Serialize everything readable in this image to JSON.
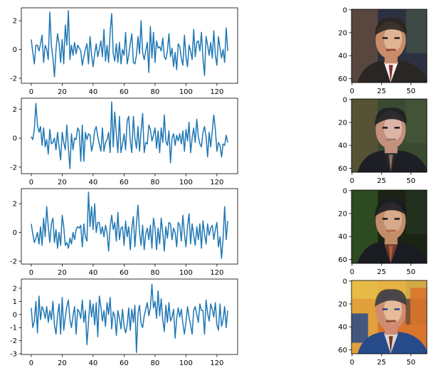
{
  "figure": {
    "line_color": "#1f77b4",
    "axis_color": "#000000",
    "background": "#ffffff"
  },
  "chart_data": [
    {
      "type": "line",
      "row": 1,
      "title": "",
      "xlabel": "",
      "ylabel": "",
      "grid": false,
      "xlim": [
        -6.4,
        133.4
      ],
      "ylim": [
        -2.35,
        2.9
      ],
      "xticks": [
        0,
        20,
        40,
        60,
        80,
        100,
        120
      ],
      "yticks": [
        -2,
        0,
        2
      ],
      "x_start": 0,
      "x_step": 1,
      "series": [
        {
          "values": [
            0.7,
            -0.2,
            -1.0,
            0.3,
            0.3,
            -0.1,
            0.4,
            1.0,
            -0.9,
            0.3,
            0.0,
            -0.7,
            2.6,
            0.3,
            -0.6,
            -1.9,
            0.0,
            1.1,
            0.4,
            -0.9,
            0.7,
            -1.0,
            1.7,
            0.3,
            2.7,
            -0.7,
            0.3,
            -0.4,
            0.5,
            -0.3,
            0.3,
            0.1,
            -0.1,
            -1.1,
            -0.5,
            0.0,
            0.4,
            -1.0,
            0.9,
            -0.4,
            -1.2,
            -0.3,
            0.4,
            -0.5,
            0.0,
            0.6,
            -0.5,
            1.4,
            -0.8,
            0.3,
            -0.9,
            1.2,
            2.5,
            -0.3,
            -0.8,
            0.4,
            -0.9,
            0.5,
            -1.0,
            0.0,
            -0.4,
            1.2,
            -1.0,
            -0.4,
            0.4,
            1.1,
            -0.9,
            -1.0,
            -0.4,
            0.9,
            -0.3,
            2.0,
            -0.2,
            -0.7,
            -0.1,
            0.5,
            -1.6,
            1.6,
            -0.6,
            1.2,
            -0.9,
            0.6,
            0.1,
            0.2,
            -0.1,
            0.8,
            -0.5,
            -0.7,
            -0.1,
            1.1,
            -0.5,
            0.1,
            -1.2,
            -0.2,
            -1.4,
            0.4,
            0.2,
            -0.6,
            -1.1,
            1.0,
            -0.5,
            -1.2,
            0.3,
            -0.1,
            -0.7,
            1.4,
            -0.5,
            0.5,
            0.6,
            -0.1,
            1.2,
            -0.6,
            -1.8,
            0.9,
            0.3,
            -0.4,
            0.5,
            -0.6,
            1.3,
            -0.4,
            -1.1,
            0.9,
            0.1,
            -0.6,
            0.0,
            -0.9,
            1.5,
            -0.1
          ]
        }
      ]
    },
    {
      "type": "line",
      "row": 2,
      "title": "",
      "xlabel": "",
      "ylabel": "",
      "grid": false,
      "xlim": [
        -6.4,
        133.4
      ],
      "ylim": [
        -2.45,
        2.75
      ],
      "xticks": [
        0,
        20,
        40,
        60,
        80,
        100,
        120
      ],
      "yticks": [
        -2,
        0,
        2
      ],
      "x_start": 0,
      "x_step": 1,
      "series": [
        {
          "values": [
            0.1,
            -0.1,
            0.6,
            2.4,
            0.9,
            0.4,
            0.8,
            -0.5,
            0.7,
            -0.6,
            -0.1,
            -1.1,
            0.6,
            -0.4,
            -0.3,
            0.0,
            -0.8,
            0.4,
            -0.6,
            -1.5,
            0.4,
            -0.3,
            -0.8,
            0.9,
            -0.7,
            -2.1,
            0.3,
            -0.8,
            0.0,
            -0.1,
            0.7,
            0.5,
            -1.6,
            0.9,
            -1.6,
            0.4,
            -0.1,
            0.3,
            0.2,
            -0.9,
            -0.4,
            0.5,
            0.8,
            0.1,
            -0.4,
            -0.9,
            0.7,
            -0.9,
            -0.3,
            -0.1,
            0.4,
            -1.0,
            2.5,
            -0.6,
            1.8,
            0.3,
            -1.0,
            1.5,
            -1.0,
            -0.4,
            0.3,
            -0.8,
            1.2,
            1.5,
            -0.2,
            -1.0,
            1.5,
            0.0,
            -0.7,
            0.8,
            -0.9,
            0.5,
            1.7,
            -1.0,
            -0.3,
            -0.4,
            0.9,
            0.6,
            -0.2,
            0.2,
            0.7,
            -0.7,
            0.5,
            -1.0,
            0.7,
            -0.3,
            1.6,
            -0.2,
            -0.5,
            0.5,
            -1.7,
            0.0,
            0.3,
            -0.5,
            0.2,
            -0.2,
            0.3,
            -0.4,
            0.5,
            -0.9,
            0.6,
            -0.2,
            1.1,
            -1.0,
            0.0,
            0.7,
            -0.3,
            1.3,
            0.1,
            -0.4,
            -0.6,
            0.4,
            0.8,
            0.1,
            -1.3,
            0.4,
            -0.6,
            0.5,
            1.6,
            0.6,
            -0.9,
            -0.3,
            -0.5,
            -1.3,
            -0.4,
            -0.5,
            0.2,
            -0.3
          ]
        }
      ]
    },
    {
      "type": "line",
      "row": 3,
      "title": "",
      "xlabel": "",
      "ylabel": "",
      "grid": false,
      "xlim": [
        -6.4,
        133.4
      ],
      "ylim": [
        -2.2,
        3.05
      ],
      "xticks": [
        0,
        20,
        40,
        60,
        80,
        100,
        120
      ],
      "yticks": [
        -2,
        0,
        2
      ],
      "x_start": 0,
      "x_step": 1,
      "series": [
        {
          "values": [
            0.6,
            -0.1,
            -0.7,
            -0.4,
            0.0,
            -0.8,
            0.4,
            -0.9,
            1.0,
            -0.3,
            1.8,
            0.4,
            -0.7,
            0.6,
            1.0,
            -0.7,
            0.2,
            -1.1,
            0.0,
            -0.9,
            1.2,
            0.4,
            -0.9,
            -0.7,
            -1.1,
            -0.4,
            -0.8,
            0.0,
            -0.5,
            0.2,
            0.4,
            0.3,
            0.5,
            -1.0,
            0.6,
            -0.3,
            -0.6,
            2.8,
            0.4,
            1.8,
            0.2,
            2.0,
            0.0,
            0.7,
            0.7,
            -0.1,
            0.4,
            -0.3,
            0.5,
            0.0,
            -1.3,
            0.4,
            1.2,
            0.2,
            0.7,
            -0.6,
            1.4,
            -0.5,
            0.3,
            0.4,
            -0.9,
            0.8,
            -0.3,
            0.4,
            -1.2,
            0.3,
            1.1,
            -1.0,
            0.6,
            1.9,
            0.0,
            -0.9,
            0.5,
            -1.2,
            -0.1,
            0.3,
            -0.5,
            0.5,
            -1.1,
            1.0,
            0.3,
            -1.2,
            0.3,
            -0.8,
            1.0,
            0.0,
            -1.3,
            0.4,
            -0.4,
            0.7,
            0.6,
            -0.5,
            0.3,
            0.0,
            -1.0,
            0.7,
            0.5,
            -0.6,
            1.2,
            -0.1,
            -1.0,
            0.4,
            1.3,
            -0.8,
            0.6,
            -0.2,
            -0.9,
            0.4,
            -0.5,
            0.6,
            -1.1,
            0.8,
            -0.1,
            -0.8,
            0.6,
            -0.2,
            0.3,
            0.5,
            -0.5,
            0.2,
            0.7,
            -1.0,
            -0.3,
            -1.8,
            -0.4,
            1.8,
            -0.5,
            0.8
          ]
        }
      ]
    },
    {
      "type": "line",
      "row": 4,
      "title": "",
      "xlabel": "",
      "ylabel": "",
      "grid": false,
      "xlim": [
        -6.4,
        133.4
      ],
      "ylim": [
        -3.05,
        2.7
      ],
      "xticks": [
        0,
        20,
        40,
        60,
        80,
        100,
        120
      ],
      "yticks": [
        -3,
        -2,
        -1,
        0,
        1,
        2
      ],
      "x_start": 0,
      "x_step": 1,
      "series": [
        {
          "values": [
            0.5,
            -1.0,
            -0.5,
            1.0,
            -1.4,
            1.4,
            -0.4,
            0.6,
            0.3,
            -0.3,
            0.6,
            -0.6,
            0.3,
            -0.4,
            1.0,
            -0.8,
            -1.5,
            -0.1,
            0.8,
            -1.5,
            1.3,
            -1.2,
            -0.2,
            0.6,
            1.1,
            -0.4,
            -1.0,
            -0.1,
            0.6,
            -1.5,
            0.4,
            0.2,
            -0.3,
            1.1,
            -0.6,
            0.3,
            -2.3,
            -0.6,
            1.1,
            -0.2,
            0.8,
            -0.8,
            0.9,
            -1.7,
            1.4,
            0.6,
            -0.5,
            0.3,
            -0.9,
            0.9,
            0.0,
            1.3,
            -1.1,
            0.2,
            -0.1,
            -1.6,
            0.3,
            -0.3,
            -1.1,
            0.4,
            -0.9,
            -1.4,
            -0.8,
            0.5,
            -1.2,
            0.4,
            -0.6,
            0.7,
            -2.9,
            0.1,
            0.7,
            -0.7,
            -1.0,
            -0.1,
            0.4,
            0.9,
            -0.1,
            0.5,
            2.3,
            0.5,
            1.0,
            -0.3,
            1.8,
            -0.1,
            1.2,
            -0.4,
            -1.3,
            0.7,
            -0.6,
            0.9,
            -0.5,
            -0.2,
            0.4,
            -1.8,
            -0.3,
            0.5,
            -0.2,
            0.4,
            -0.7,
            -1.5,
            -0.6,
            0.6,
            -0.2,
            -0.8,
            -1.5,
            0.3,
            0.6,
            0.0,
            -0.6,
            0.8,
            0.3,
            0.3,
            -1.5,
            1.1,
            0.1,
            -0.5,
            0.8,
            0.4,
            -0.2,
            0.9,
            -0.8,
            -1.2,
            0.8,
            -0.9,
            -0.4,
            0.6,
            -1.0,
            0.3
          ]
        }
      ]
    }
  ],
  "images": [
    {
      "name": "generated-face-1",
      "xticks": [
        0,
        25,
        50
      ],
      "yticks": [
        0,
        20,
        40,
        60
      ],
      "palette": [
        "#2b3140",
        "#7d5a3e",
        "#c98c6a",
        "#e8c4a6",
        "#2a2623",
        "#f2f0ee",
        "#8a2b25",
        "#4a5a4a"
      ]
    },
    {
      "name": "generated-face-2",
      "xticks": [
        0,
        25,
        50
      ],
      "yticks": [
        0,
        20,
        40,
        60
      ],
      "palette": [
        "#3a4a30",
        "#6b5a3b",
        "#c3907e",
        "#e6c3b6",
        "#1e1f24",
        "#26282e",
        "#8d6e5a",
        "#495c3a"
      ]
    },
    {
      "name": "generated-face-3",
      "xticks": [
        0,
        25,
        50
      ],
      "yticks": [
        0,
        20,
        40,
        60
      ],
      "palette": [
        "#1b2414",
        "#3c6a2a",
        "#c48d6a",
        "#e0b79a",
        "#1a1c22",
        "#6b3c2c",
        "#b25c3a",
        "#283824"
      ]
    },
    {
      "name": "generated-face-4",
      "xticks": [
        0,
        25,
        50
      ],
      "yticks": [
        0,
        20,
        40,
        60
      ],
      "palette": [
        "#d9752b",
        "#e9c24a",
        "#cf8c70",
        "#f0cfae",
        "#274a8a",
        "#d8d8d6",
        "#7a3820",
        "#3a3c45"
      ]
    }
  ]
}
